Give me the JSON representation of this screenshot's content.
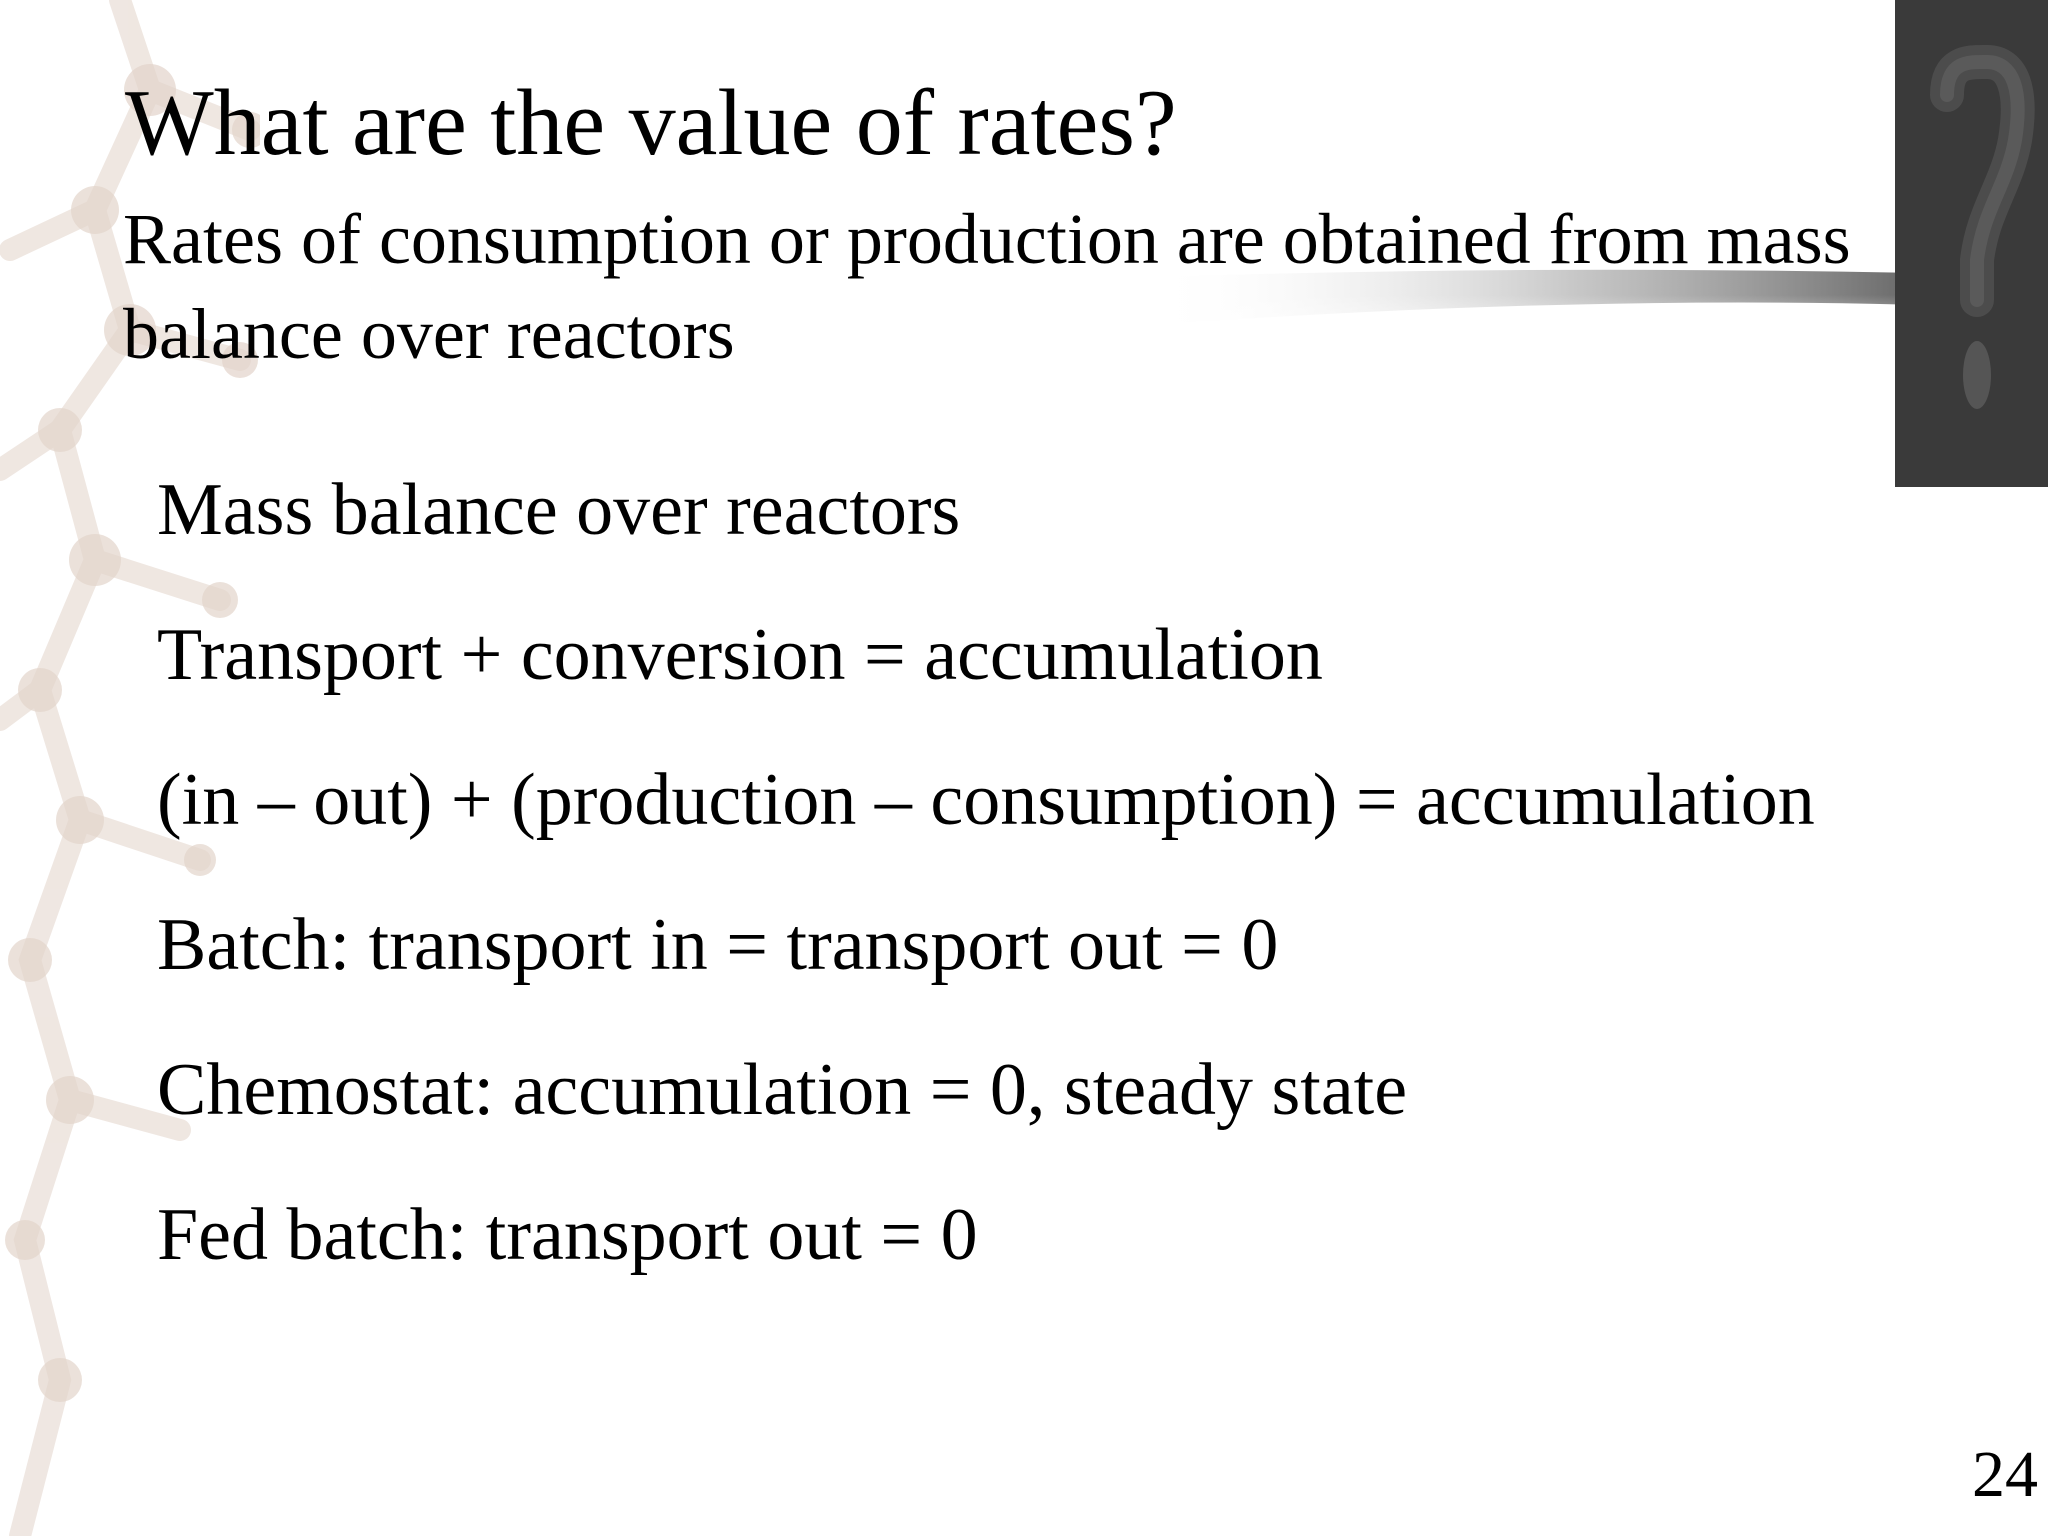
{
  "slide": {
    "title": "What are the value of rates?",
    "subtitle": "Rates of consumption or production are obtained from mass balance over reactors",
    "lines": [
      "Mass balance over reactors",
      "Transport + conversion = accumulation",
      "(in – out) + (production – consumption) = accumulation",
      "Batch: transport in = transport out = 0",
      "Chemostat: accumulation = 0, steady state",
      "Fed batch: transport out = 0"
    ],
    "page_number": "24"
  },
  "decorations": {
    "question_mark": "?",
    "panel_color": "#3a3a3a"
  }
}
